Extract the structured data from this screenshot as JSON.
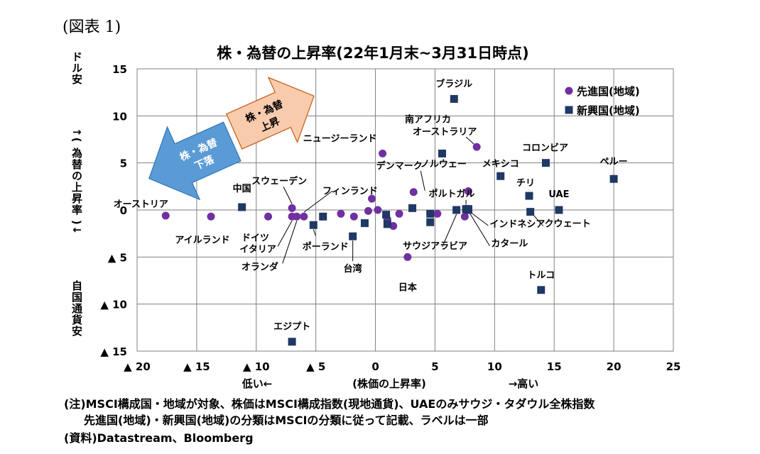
{
  "figure_label": "(図表 1)",
  "notes": [
    "(注)MSCI構成国・地域が対象、株価はMSCI構成指数(現地通貨)、UAEのみサウジ・タダウル全株指数",
    "先進国(地域)・新興国(地域)の分類はMSCIの分類に従って記載、ラベルは一部",
    "(資料)Datastream、Bloomberg"
  ],
  "annotations": {
    "y_top": "ドル安",
    "y_middle": "↑( 為替の上昇率 )↓",
    "y_bottom": "自国通貨安",
    "x_low": "低い←",
    "x_high": "→高い",
    "arrow_up": [
      "株・為替",
      "上昇"
    ],
    "arrow_down": [
      "株・為替",
      "下落"
    ]
  },
  "colors": {
    "developed": "#7030A0",
    "emerging": "#1F3864",
    "arrow_up": "#F8CBAD",
    "arrow_down": "#5B9BD5"
  },
  "chart_data": {
    "type": "scatter",
    "title": "株・為替の上昇率(22年1月末~3月31日時点)",
    "xlabel": "(株価の上昇率)",
    "xlim": [
      -20,
      25
    ],
    "ylim": [
      -15,
      15
    ],
    "x_ticks": [
      {
        "v": -20,
        "label": "▲ 20"
      },
      {
        "v": -15,
        "label": "▲ 15"
      },
      {
        "v": -10,
        "label": "▲ 10"
      },
      {
        "v": -5,
        "label": "▲ 5"
      },
      {
        "v": 0,
        "label": "0"
      },
      {
        "v": 5,
        "label": "5"
      },
      {
        "v": 10,
        "label": "10"
      },
      {
        "v": 15,
        "label": "15"
      },
      {
        "v": 20,
        "label": "20"
      },
      {
        "v": 25,
        "label": "25"
      }
    ],
    "y_ticks": [
      {
        "v": 15,
        "label": "15"
      },
      {
        "v": 10,
        "label": "10"
      },
      {
        "v": 5,
        "label": "5"
      },
      {
        "v": 0,
        "label": "0"
      },
      {
        "v": -5,
        "label": "▲ 5"
      },
      {
        "v": -10,
        "label": "▲ 10"
      },
      {
        "v": -15,
        "label": "▲ 15"
      }
    ],
    "grid": true,
    "legend_position": "top-right",
    "series": [
      {
        "name": "先進国(地域)",
        "marker": "circle",
        "points": [
          {
            "x": -17.6,
            "y": -0.6,
            "label": "オーストリア"
          },
          {
            "x": -13.8,
            "y": -0.7,
            "label": "アイルランド"
          },
          {
            "x": -9.0,
            "y": -0.7,
            "label": "ドイツ"
          },
          {
            "x": -7.0,
            "y": 0.2,
            "label": "スウェーデン"
          },
          {
            "x": -7.0,
            "y": -0.7,
            "label": "イタリア"
          },
          {
            "x": -6.6,
            "y": -0.7,
            "label": "オランダ"
          },
          {
            "x": -6.0,
            "y": -0.7,
            "label": "フィンランド"
          },
          {
            "x": -2.9,
            "y": -0.4,
            "label": ""
          },
          {
            "x": -1.8,
            "y": -0.7,
            "label": ""
          },
          {
            "x": -0.6,
            "y": -0.1,
            "label": ""
          },
          {
            "x": -0.3,
            "y": 1.2,
            "label": ""
          },
          {
            "x": 0.2,
            "y": 0.0,
            "label": ""
          },
          {
            "x": 0.6,
            "y": 6.0,
            "label": "ニュージーランド"
          },
          {
            "x": 1.0,
            "y": -1.0,
            "label": ""
          },
          {
            "x": 1.5,
            "y": -1.7,
            "label": ""
          },
          {
            "x": 2.0,
            "y": -0.4,
            "label": ""
          },
          {
            "x": 2.7,
            "y": -5.0,
            "label": "日本"
          },
          {
            "x": 3.2,
            "y": 1.9,
            "label": "デンマーク"
          },
          {
            "x": 5.2,
            "y": -0.4,
            "label": ""
          },
          {
            "x": 7.5,
            "y": -0.7,
            "label": ""
          },
          {
            "x": 7.8,
            "y": 2.0,
            "label": "ノルウェー"
          },
          {
            "x": 8.5,
            "y": 6.7,
            "label": "オーストラリア"
          }
        ]
      },
      {
        "name": "新興国(地域)",
        "marker": "square",
        "points": [
          {
            "x": -11.2,
            "y": 0.3,
            "label": "中国"
          },
          {
            "x": -7.0,
            "y": -14.0,
            "label": "エジプト"
          },
          {
            "x": -5.2,
            "y": -1.6,
            "label": "ポーランド"
          },
          {
            "x": -4.4,
            "y": -0.7,
            "label": ""
          },
          {
            "x": -1.9,
            "y": -2.8,
            "label": "台湾"
          },
          {
            "x": -0.9,
            "y": -1.4,
            "label": ""
          },
          {
            "x": 0.9,
            "y": -0.5,
            "label": ""
          },
          {
            "x": 1.0,
            "y": -1.5,
            "label": ""
          },
          {
            "x": 3.1,
            "y": 0.2,
            "label": ""
          },
          {
            "x": 4.6,
            "y": -0.4,
            "label": ""
          },
          {
            "x": 4.6,
            "y": -1.3,
            "label": ""
          },
          {
            "x": 5.6,
            "y": 6.0,
            "label": "南アフリカ"
          },
          {
            "x": 6.6,
            "y": 11.8,
            "label": "ブラジル"
          },
          {
            "x": 6.8,
            "y": 0.0,
            "label": "サウジアラビア"
          },
          {
            "x": 7.6,
            "y": 0.1,
            "label": "ポルトガル"
          },
          {
            "x": 7.8,
            "y": 0.0,
            "label": "インドネシア"
          },
          {
            "x": 7.8,
            "y": 0.1,
            "label": "カタール"
          },
          {
            "x": 10.5,
            "y": 3.6,
            "label": "メキシコ"
          },
          {
            "x": 12.9,
            "y": 1.5,
            "label": "チリ"
          },
          {
            "x": 13.0,
            "y": -0.2,
            "label": "クウェート"
          },
          {
            "x": 13.9,
            "y": -8.5,
            "label": "トルコ"
          },
          {
            "x": 14.3,
            "y": 5.0,
            "label": "コロンビア"
          },
          {
            "x": 15.4,
            "y": 0.0,
            "label": "UAE"
          },
          {
            "x": 20.0,
            "y": 3.3,
            "label": "ペルー"
          }
        ]
      }
    ]
  }
}
